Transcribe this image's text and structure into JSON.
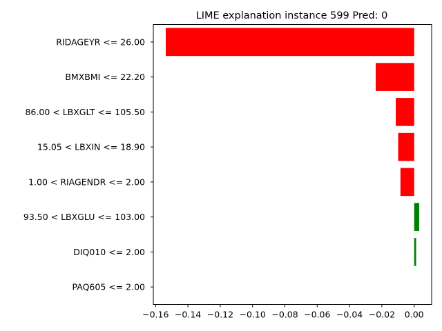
{
  "chart_data": {
    "type": "bar",
    "orientation": "horizontal",
    "title": "LIME explanation instance 599 Pred: 0",
    "xlabel": "",
    "ylabel": "",
    "categories": [
      "RIDAGEYR <= 26.00",
      "BMXBMI <= 22.20",
      "86.00 < LBXGLT <= 105.50",
      "15.05 < LBXIN <= 18.90",
      "1.00 < RIAGENDR <= 2.00",
      "93.50 < LBXGLU <= 103.00",
      "DIQ010 <= 2.00",
      "PAQ605 <= 2.00"
    ],
    "values": [
      -0.1537,
      -0.0238,
      -0.0114,
      -0.0099,
      -0.0085,
      0.0031,
      0.0012,
      0.0
    ],
    "xlim": [
      -0.1614,
      0.0108
    ],
    "xticks": [
      -0.16,
      -0.14,
      -0.12,
      -0.1,
      -0.08,
      -0.06,
      -0.04,
      -0.02,
      0.0
    ],
    "xtick_labels": [
      "−0.16",
      "−0.14",
      "−0.12",
      "−0.10",
      "−0.08",
      "−0.06",
      "−0.04",
      "−0.02",
      "0.00"
    ],
    "grid": false,
    "colors": {
      "positive": "#008000",
      "negative": "#ff0000",
      "axis": "#000000"
    }
  }
}
